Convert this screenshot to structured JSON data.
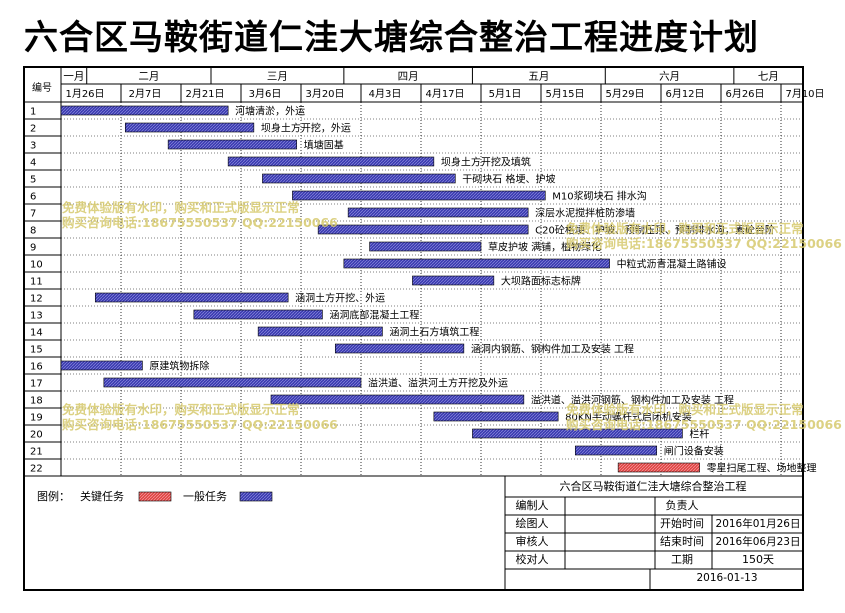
{
  "title": "六合区马鞍街道仁洼大塘综合整治工程进度计划",
  "chart_data": {
    "type": "gantt",
    "header_label": "编号",
    "months": [
      "一月",
      "二月",
      "三月",
      "四月",
      "五月",
      "六月",
      "七月"
    ],
    "week_labels": [
      "1月26日",
      "2月7日",
      "2月21日",
      "3月6日",
      "3月20日",
      "4月3日",
      "4月17日",
      "5月1日",
      "5月15日",
      "5月29日",
      "6月12日",
      "6月26日",
      "7月10日"
    ],
    "tasks": [
      {
        "id": "1",
        "label": "河塘清淤，外运",
        "start": "01-26",
        "end": "03-05",
        "critical": false
      },
      {
        "id": "2",
        "label": "坝身土方开挖，外运",
        "start": "02-10",
        "end": "03-11",
        "critical": false
      },
      {
        "id": "3",
        "label": "填塘固基",
        "start": "02-20",
        "end": "03-21",
        "critical": false
      },
      {
        "id": "4",
        "label": "坝身土方开挖及填筑",
        "start": "03-05",
        "end": "04-22",
        "critical": false
      },
      {
        "id": "5",
        "label": "干砌块石  格埂、护坡",
        "start": "03-13",
        "end": "04-27",
        "critical": false
      },
      {
        "id": "6",
        "label": "M10浆砌块石  排水沟",
        "start": "03-20",
        "end": "05-18",
        "critical": false
      },
      {
        "id": "7",
        "label": "深层水泥搅拌桩防渗墙",
        "start": "04-02",
        "end": "05-14",
        "critical": false
      },
      {
        "id": "8",
        "label": "C20砼格埂、护坡、预制压顶、预制排水沟，素砼台阶",
        "start": "03-26",
        "end": "05-14",
        "critical": false
      },
      {
        "id": "9",
        "label": "草皮护坡  满铺，植物绿化",
        "start": "04-07",
        "end": "05-03",
        "critical": false
      },
      {
        "id": "10",
        "label": "中粒式沥青混凝土路铺设",
        "start": "04-01",
        "end": "06-02",
        "critical": false
      },
      {
        "id": "11",
        "label": "大坝路面标志标牌",
        "start": "04-17",
        "end": "05-06",
        "critical": false
      },
      {
        "id": "12",
        "label": "涵洞土方开挖、外运",
        "start": "02-03",
        "end": "03-19",
        "critical": false
      },
      {
        "id": "13",
        "label": "涵洞底部混凝土工程",
        "start": "02-26",
        "end": "03-27",
        "critical": false
      },
      {
        "id": "14",
        "label": "涵洞土石方填筑工程",
        "start": "03-12",
        "end": "04-10",
        "critical": false
      },
      {
        "id": "15",
        "label": "涵洞内钢筋、钢构件加工及安装  工程",
        "start": "03-30",
        "end": "04-29",
        "critical": false
      },
      {
        "id": "16",
        "label": "原建筑物拆除",
        "start": "01-26",
        "end": "02-14",
        "critical": false
      },
      {
        "id": "17",
        "label": "溢洪道、溢洪河土方开挖及外运",
        "start": "02-05",
        "end": "04-05",
        "critical": false
      },
      {
        "id": "18",
        "label": "溢洪道、溢洪河钢筋、钢构件加工及安装  工程",
        "start": "03-15",
        "end": "05-13",
        "critical": false
      },
      {
        "id": "19",
        "label": "80KN手动螺杆式启闭机安装",
        "start": "04-22",
        "end": "05-21",
        "critical": false
      },
      {
        "id": "20",
        "label": "栏杆",
        "start": "05-01",
        "end": "06-19",
        "critical": false
      },
      {
        "id": "21",
        "label": "闸门设备安装",
        "start": "05-25",
        "end": "06-13",
        "critical": false
      },
      {
        "id": "22",
        "label": "零星扫尾工程、场地整理",
        "start": "06-04",
        "end": "06-23",
        "critical": true
      }
    ]
  },
  "legend": {
    "label": "图例：",
    "critical_label": "关键任务",
    "normal_label": "一般任务",
    "critical_color": "#e04545",
    "normal_color": "#3b3bb0"
  },
  "info_table": {
    "title": "六合区马鞍街道仁洼大塘综合整治工程",
    "compiler_label": "编制人",
    "principal_label": "负责人",
    "drafter_label": "绘图人",
    "start_label": "开始时间",
    "start_value": "2016年01月26日",
    "reviewer_label": "审核人",
    "end_label": "结束时间",
    "end_value": "2016年06月23日",
    "checker_label": "校对人",
    "duration_label": "工期",
    "duration_value": "150天",
    "date": "2016-01-13"
  },
  "watermark": {
    "line1": "免费体验版有水印，购买和正式版显示正常",
    "line2": "购买咨询电话:18675550537 QQ:22150066"
  }
}
